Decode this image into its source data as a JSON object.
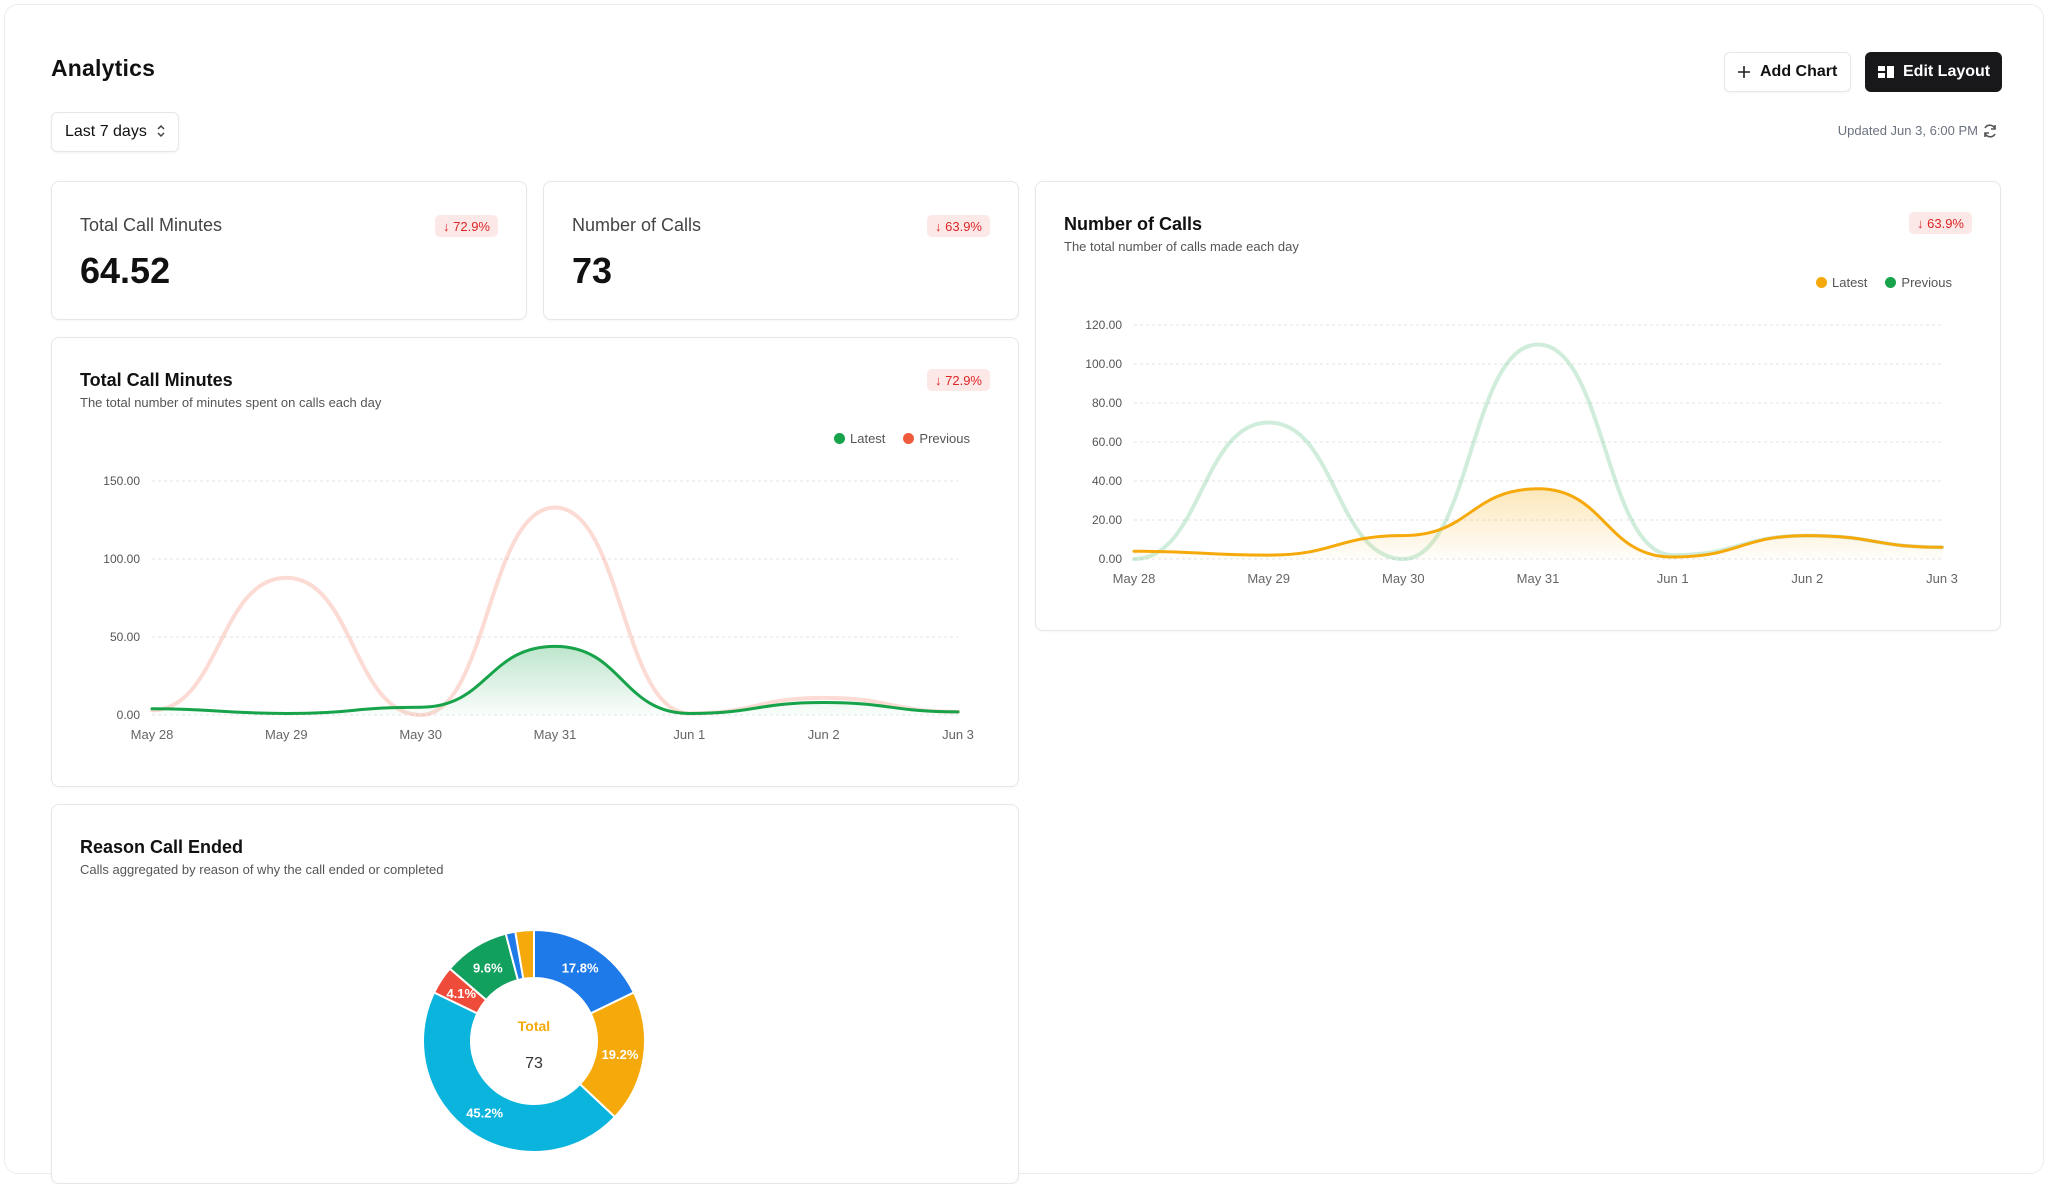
{
  "header": {
    "title": "Analytics",
    "range_label": "Last 7 days",
    "add_chart_label": "Add Chart",
    "edit_layout_label": "Edit Layout",
    "updated_text": "Updated Jun 3, 6:00 PM"
  },
  "stats": {
    "minutes": {
      "label": "Total Call Minutes",
      "value": "64.52",
      "change": "↓ 72.9%"
    },
    "calls": {
      "label": "Number of Calls",
      "value": "73",
      "change": "↓ 63.9%"
    }
  },
  "colors": {
    "latest_green": "#16a34a",
    "previous_coral": "#f05a3c",
    "latest_yellow": "#f5a90a",
    "previous_green": "#16a34a",
    "badge_red": "#dc2626"
  },
  "chart_data": [
    {
      "type": "line",
      "title": "Total Call Minutes",
      "subtitle": "The total number of minutes spent on calls each day",
      "change": "↓ 72.9%",
      "legend": [
        "Latest",
        "Previous"
      ],
      "legend_position": "top-right",
      "categories": [
        "May 28",
        "May 29",
        "May 30",
        "May 31",
        "Jun 1",
        "Jun 2",
        "Jun 3"
      ],
      "y_ticks": [
        "0.00",
        "50.00",
        "100.00",
        "150.00"
      ],
      "ylim": [
        0,
        150
      ],
      "grid": true,
      "series": [
        {
          "name": "Latest",
          "values": [
            4,
            1,
            5,
            44,
            1,
            8,
            2
          ]
        },
        {
          "name": "Previous",
          "values": [
            3,
            88,
            0,
            133,
            1,
            11,
            2
          ]
        }
      ]
    },
    {
      "type": "line",
      "title": "Number of Calls",
      "subtitle": "The total number of calls made each day",
      "change": "↓ 63.9%",
      "legend": [
        "Latest",
        "Previous"
      ],
      "legend_position": "top-right",
      "categories": [
        "May 28",
        "May 29",
        "May 30",
        "May 31",
        "Jun 1",
        "Jun 2",
        "Jun 3"
      ],
      "y_ticks": [
        "0.00",
        "20.00",
        "40.00",
        "60.00",
        "80.00",
        "100.00",
        "120.00"
      ],
      "ylim": [
        0,
        120
      ],
      "grid": true,
      "series": [
        {
          "name": "Latest",
          "values": [
            4,
            2,
            12,
            36,
            1,
            12,
            6
          ]
        },
        {
          "name": "Previous",
          "values": [
            0,
            70,
            0,
            110,
            2,
            12,
            6
          ]
        }
      ]
    },
    {
      "type": "pie",
      "title": "Reason Call Ended",
      "subtitle": "Calls aggregated by reason of why the call ended or completed",
      "center_label": "Total",
      "center_value": "73",
      "slices": [
        {
          "label": "17.8%",
          "value": 17.8,
          "color": "#1e7ae8"
        },
        {
          "label": "19.2%",
          "value": 19.2,
          "color": "#f5a90a"
        },
        {
          "label": "45.2%",
          "value": 45.2,
          "color": "#0ab4dc"
        },
        {
          "label": "4.1%",
          "value": 4.1,
          "color": "#ef4b3a"
        },
        {
          "label": "9.6%",
          "value": 9.6,
          "color": "#12a05e"
        },
        {
          "label": "",
          "value": 1.4,
          "color": "#1e7ae8"
        },
        {
          "label": "",
          "value": 2.7,
          "color": "#f5a90a"
        }
      ]
    }
  ]
}
